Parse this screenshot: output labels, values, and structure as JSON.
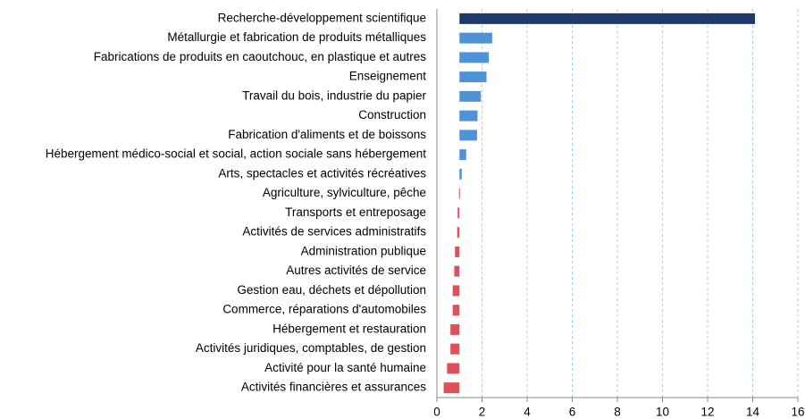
{
  "chart_data": {
    "type": "barh",
    "categories": [
      "Recherche-développement scientifique",
      "Métallurgie et fabrication de produits métalliques",
      "Fabrications de produits en caoutchouc, en plastique et autres",
      "Enseignement",
      "Travail du bois, industrie du papier",
      "Construction",
      "Fabrication d'aliments et de boissons",
      "Hébergement médico-social et social, action sociale sans hébergement",
      "Arts, spectacles et activités récréatives",
      "Agriculture, sylviculture, pêche",
      "Transports et entreposage",
      "Activités de services administratifs",
      "Administration publique",
      "Autres activités de service",
      "Gestion eau, déchets et dépollution",
      "Commerce, réparations d'automobiles",
      "Hébergement et restauration",
      "Activités juridiques, comptables, de gestion",
      "Activité pour la santé humaine",
      "Activités financières et assurances"
    ],
    "values": [
      14.1,
      2.45,
      2.3,
      2.2,
      1.95,
      1.8,
      1.78,
      1.3,
      1.1,
      0.98,
      0.92,
      0.9,
      0.8,
      0.77,
      0.7,
      0.7,
      0.6,
      0.6,
      0.45,
      0.3
    ],
    "colors": [
      "#1f3a68",
      "#4f93d6",
      "#4f93d6",
      "#4f93d6",
      "#4f93d6",
      "#4f93d6",
      "#4f93d6",
      "#4f93d6",
      "#4f93d6",
      "#e0505a",
      "#e0505a",
      "#e0505a",
      "#e0505a",
      "#e0505a",
      "#e0505a",
      "#e0505a",
      "#e0505a",
      "#e0505a",
      "#e0505a",
      "#e0505a"
    ],
    "baseline": 1,
    "xlim": [
      0,
      16
    ],
    "xticks": [
      0,
      2,
      4,
      6,
      8,
      10,
      12,
      14,
      16
    ],
    "grid": true
  }
}
